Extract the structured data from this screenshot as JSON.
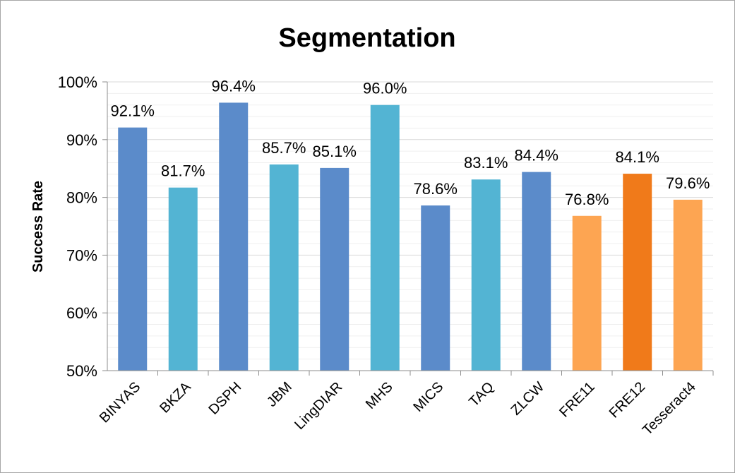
{
  "chart_data": {
    "type": "bar",
    "title": "Segmentation",
    "xlabel": "",
    "ylabel": "Success Rate",
    "ylim": [
      50,
      100
    ],
    "y_ticks": [
      "50%",
      "60%",
      "70%",
      "80%",
      "90%",
      "100%"
    ],
    "grid": true,
    "legend": "none",
    "categories": [
      "BINYAS",
      "BKZA",
      "DSPH",
      "JBM",
      "LingDIAR",
      "MHS",
      "MICS",
      "TAQ",
      "ZLCW",
      "FRE11",
      "FRE12",
      "Tesseract4"
    ],
    "values": [
      92.1,
      81.7,
      96.4,
      85.7,
      85.1,
      96.0,
      78.6,
      83.1,
      84.4,
      76.8,
      84.1,
      79.6
    ],
    "data_labels": [
      "92.1%",
      "81.7%",
      "96.4%",
      "85.7%",
      "85.1%",
      "96.0%",
      "78.6%",
      "83.1%",
      "84.4%",
      "76.8%",
      "84.1%",
      "79.6%"
    ],
    "bar_colors": [
      "#5b8bca",
      "#53b4d3",
      "#5b8bca",
      "#53b4d3",
      "#5b8bca",
      "#53b4d3",
      "#5b8bca",
      "#53b4d3",
      "#5b8bca",
      "#fda552",
      "#f07a1a",
      "#fda552"
    ]
  }
}
